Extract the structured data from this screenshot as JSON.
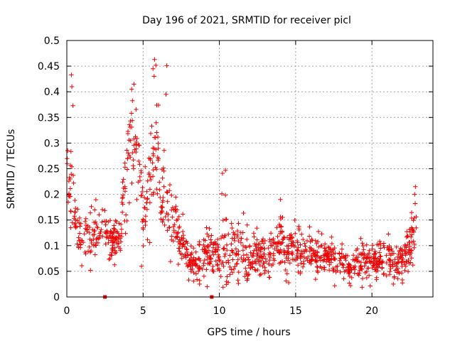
{
  "chart_data": {
    "type": "scatter",
    "title": "Day 196 of 2021, SRMTID for receiver picl",
    "xlabel": "GPS time / hours",
    "ylabel": "SRMTID / TECUs",
    "xlim": [
      0,
      24
    ],
    "ylim": [
      0,
      0.5
    ],
    "xticks": [
      0,
      5,
      10,
      15,
      20
    ],
    "xtick_labels": [
      "0",
      "5",
      "10",
      "15",
      "20"
    ],
    "yticks": [
      0,
      0.05,
      0.1,
      0.15,
      0.2,
      0.25,
      0.3,
      0.35,
      0.4,
      0.45,
      0.5
    ],
    "ytick_labels": [
      "0",
      "0.05",
      "0.1",
      "0.15",
      "0.2",
      "0.25",
      "0.3",
      "0.35",
      "0.4",
      "0.45",
      "0.5"
    ],
    "grid": true,
    "marker": "plus",
    "color": "#ee0000",
    "series": [
      {
        "name": "SRMTID",
        "envelope": {
          "x": [
            0,
            0.3,
            0.6,
            1,
            1.5,
            2,
            2.5,
            3,
            3.5,
            4,
            4.3,
            4.7,
            5,
            5.5,
            5.8,
            6.3,
            6.8,
            7.5,
            8,
            8.5,
            9,
            9.5,
            10,
            10.5,
            11,
            12,
            13,
            14,
            15,
            16,
            17,
            18,
            18.5,
            19,
            20,
            21,
            21.5,
            22,
            22.5,
            22.9
          ],
          "center": [
            0.24,
            0.2,
            0.14,
            0.12,
            0.12,
            0.12,
            0.13,
            0.11,
            0.12,
            0.26,
            0.33,
            0.26,
            0.15,
            0.24,
            0.31,
            0.2,
            0.15,
            0.11,
            0.07,
            0.06,
            0.08,
            0.09,
            0.08,
            0.1,
            0.09,
            0.08,
            0.08,
            0.1,
            0.09,
            0.08,
            0.08,
            0.08,
            0.05,
            0.07,
            0.07,
            0.08,
            0.06,
            0.07,
            0.1,
            0.16
          ],
          "spread": [
            0.05,
            0.08,
            0.04,
            0.04,
            0.04,
            0.05,
            0.04,
            0.03,
            0.05,
            0.09,
            0.07,
            0.07,
            0.07,
            0.1,
            0.1,
            0.08,
            0.05,
            0.04,
            0.03,
            0.03,
            0.04,
            0.04,
            0.05,
            0.08,
            0.05,
            0.04,
            0.04,
            0.05,
            0.04,
            0.03,
            0.03,
            0.03,
            0.02,
            0.03,
            0.03,
            0.03,
            0.03,
            0.03,
            0.04,
            0.05
          ]
        },
        "points_per_hour": 56,
        "seed": 196,
        "peaks": [
          {
            "x": 0.3,
            "y": 0.433
          },
          {
            "x": 0.33,
            "y": 0.41
          },
          {
            "x": 0.4,
            "y": 0.373
          },
          {
            "x": 5.75,
            "y": 0.463
          },
          {
            "x": 5.65,
            "y": 0.445
          },
          {
            "x": 6.55,
            "y": 0.451
          },
          {
            "x": 6.5,
            "y": 0.395
          },
          {
            "x": 4.4,
            "y": 0.415
          },
          {
            "x": 4.25,
            "y": 0.405
          },
          {
            "x": 10.4,
            "y": 0.247
          },
          {
            "x": 10.2,
            "y": 0.241
          },
          {
            "x": 14.0,
            "y": 0.19
          },
          {
            "x": 22.85,
            "y": 0.215
          },
          {
            "x": 22.8,
            "y": 0.2
          },
          {
            "x": 1.55,
            "y": 0.052
          },
          {
            "x": 8.7,
            "y": 0.025
          },
          {
            "x": 9.2,
            "y": 0.02
          },
          {
            "x": 18.6,
            "y": 0.022
          },
          {
            "x": 21.4,
            "y": 0.025
          },
          {
            "x": 4.9,
            "y": 0.06
          }
        ]
      }
    ],
    "zero_markers": [
      {
        "x": 2.5,
        "y": 0
      },
      {
        "x": 9.5,
        "y": 0
      }
    ]
  }
}
